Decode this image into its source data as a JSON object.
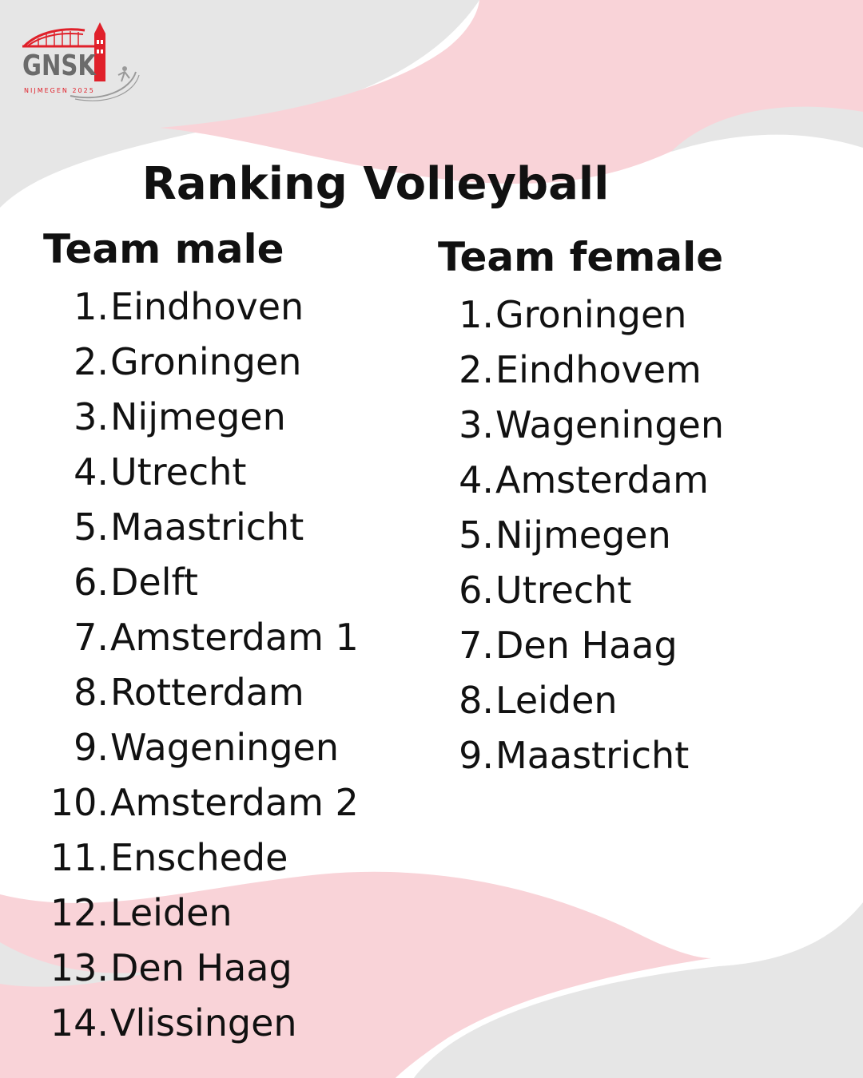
{
  "logo": {
    "text": "GNSK",
    "subtext": "NIJMEGEN 2025",
    "brand_color": "#e0202a",
    "text_color": "#6b6b6b"
  },
  "colors": {
    "pink": "#f9d3d8",
    "grey": "#e6e6e6",
    "white": "#ffffff",
    "text": "#111111"
  },
  "title": "Ranking Volleyball",
  "male": {
    "heading": "Team male",
    "items": [
      {
        "num": "1.",
        "name": "Eindhoven"
      },
      {
        "num": "2.",
        "name": "Groningen"
      },
      {
        "num": "3.",
        "name": "Nijmegen"
      },
      {
        "num": "4.",
        "name": "Utrecht"
      },
      {
        "num": "5.",
        "name": "Maastricht"
      },
      {
        "num": "6.",
        "name": "Delft"
      },
      {
        "num": "7.",
        "name": "Amsterdam 1"
      },
      {
        "num": "8.",
        "name": "Rotterdam"
      },
      {
        "num": "9.",
        "name": "Wageningen"
      },
      {
        "num": "10.",
        "name": "Amsterdam 2"
      },
      {
        "num": "11.",
        "name": "Enschede"
      },
      {
        "num": "12.",
        "name": "Leiden"
      },
      {
        "num": "13.",
        "name": "Den Haag"
      },
      {
        "num": "14.",
        "name": "Vlissingen"
      }
    ]
  },
  "female": {
    "heading": "Team female",
    "items": [
      {
        "num": "1.",
        "name": "Groningen"
      },
      {
        "num": "2.",
        "name": "Eindhovem"
      },
      {
        "num": "3.",
        "name": "Wageningen"
      },
      {
        "num": "4.",
        "name": "Amsterdam"
      },
      {
        "num": "5.",
        "name": "Nijmegen"
      },
      {
        "num": "6.",
        "name": "Utrecht"
      },
      {
        "num": "7.",
        "name": "Den Haag"
      },
      {
        "num": "8.",
        "name": "Leiden"
      },
      {
        "num": "9.",
        "name": "Maastricht"
      }
    ]
  }
}
